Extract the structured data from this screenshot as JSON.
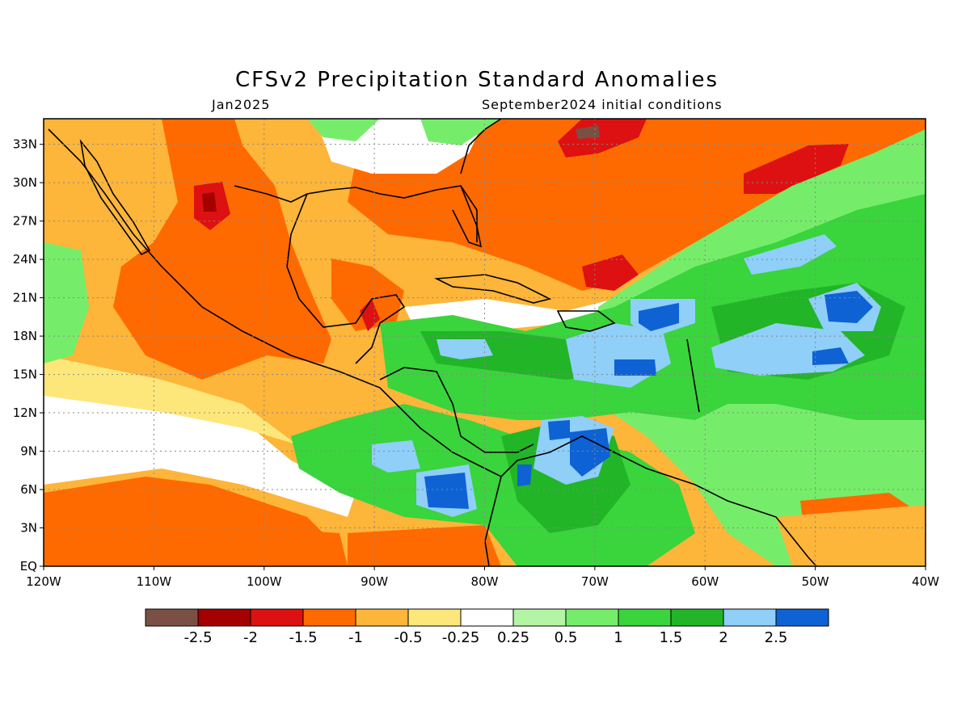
{
  "title": "CFSv2 Precipitation Standard Anomalies",
  "valid_month": "Jan2025",
  "initial_conditions": "September2024 initial conditions",
  "axes": {
    "lon_labels": [
      "120W",
      "110W",
      "100W",
      "90W",
      "80W",
      "70W",
      "60W",
      "50W",
      "40W"
    ],
    "lat_labels": [
      "EQ",
      "3N",
      "6N",
      "9N",
      "12N",
      "15N",
      "18N",
      "21N",
      "24N",
      "27N",
      "30N",
      "33N"
    ],
    "lon_range": [
      -120,
      -40
    ],
    "lat_range": [
      0,
      35
    ],
    "grid": "dotted"
  },
  "colorbar": {
    "colors": [
      "#7b5044",
      "#a50000",
      "#dd1111",
      "#ff6a00",
      "#fdb53a",
      "#fee77a",
      "#ffffff",
      "#b3f5a5",
      "#76ed6a",
      "#3ad43c",
      "#21b527",
      "#8fcff8",
      "#0e62d4"
    ],
    "labels": [
      "-2.5",
      "-2",
      "-1.5",
      "-1",
      "-0.5",
      "-0.25",
      "0.25",
      "0.5",
      "1",
      "1.5",
      "2",
      "2.5"
    ]
  },
  "colors": {
    "very_dry": "#7b5044",
    "dry_2": "#a50000",
    "dry_15": "#dd1111",
    "dry_1": "#ff6a00",
    "dry_05": "#fdb53a",
    "dry_025": "#fee77a",
    "neutral": "#ffffff",
    "wet_025": "#b3f5a5",
    "wet_05": "#76ed6a",
    "wet_1": "#3ad43c",
    "wet_15": "#21b527",
    "wet_2": "#8fcff8",
    "wet_25": "#0e62d4"
  }
}
